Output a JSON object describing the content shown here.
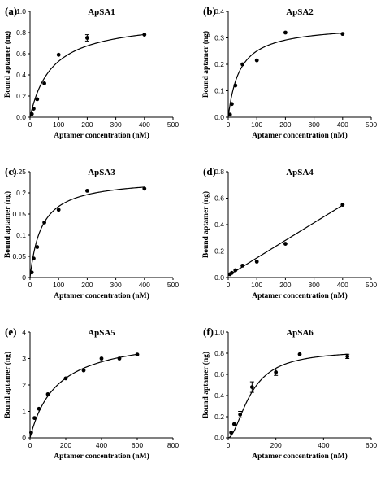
{
  "chart_data": [
    {
      "panel_label": "(a)",
      "title": "ApSA1",
      "type": "scatter",
      "xlabel": "Aptamer concentration (nM)",
      "ylabel": "Bound aptamer (ng)",
      "xlim": [
        0,
        500
      ],
      "ylim": [
        0,
        1.0
      ],
      "xticks": [
        0,
        100,
        200,
        300,
        400,
        500
      ],
      "yticks": [
        0.0,
        0.2,
        0.4,
        0.6,
        0.8,
        1.0
      ],
      "xtick_labels": [
        "0",
        "100",
        "200",
        "300",
        "400",
        "500"
      ],
      "ytick_labels": [
        "0.0",
        "0.2",
        "0.4",
        "0.6",
        "0.8",
        "1.0"
      ],
      "points": [
        {
          "x": 6.25,
          "y": 0.03
        },
        {
          "x": 12.5,
          "y": 0.08
        },
        {
          "x": 25,
          "y": 0.17
        },
        {
          "x": 50,
          "y": 0.32
        },
        {
          "x": 100,
          "y": 0.59
        },
        {
          "x": 200,
          "y": 0.75,
          "err": 0.03
        },
        {
          "x": 400,
          "y": 0.78
        }
      ],
      "fit": {
        "model": "hyperbolic",
        "bmax": 0.93,
        "kd": 76,
        "xmax": 400
      }
    },
    {
      "panel_label": "(b)",
      "title": "ApSA2",
      "type": "scatter",
      "xlabel": "Aptamer concentration (nM)",
      "ylabel": "Bound aptamer (ng)",
      "xlim": [
        0,
        500
      ],
      "ylim": [
        0,
        0.4
      ],
      "xticks": [
        0,
        100,
        200,
        300,
        400,
        500
      ],
      "yticks": [
        0.0,
        0.1,
        0.2,
        0.3,
        0.4
      ],
      "xtick_labels": [
        "0",
        "100",
        "200",
        "300",
        "400",
        "500"
      ],
      "ytick_labels": [
        "0.0",
        "0.1",
        "0.2",
        "0.3",
        "0.4"
      ],
      "points": [
        {
          "x": 6.25,
          "y": 0.01
        },
        {
          "x": 12.5,
          "y": 0.05
        },
        {
          "x": 25,
          "y": 0.12
        },
        {
          "x": 50,
          "y": 0.2
        },
        {
          "x": 100,
          "y": 0.215
        },
        {
          "x": 200,
          "y": 0.32
        },
        {
          "x": 400,
          "y": 0.315
        }
      ],
      "fit": {
        "model": "hyperbolic",
        "bmax": 0.35,
        "kd": 40,
        "xmax": 400
      }
    },
    {
      "panel_label": "(c)",
      "title": "ApSA3",
      "type": "scatter",
      "xlabel": "Aptamer concentration (nM)",
      "ylabel": "Bound aptamer (ng)",
      "xlim": [
        0,
        500
      ],
      "ylim": [
        0,
        0.25
      ],
      "xticks": [
        0,
        100,
        200,
        300,
        400,
        500
      ],
      "yticks": [
        0.0,
        0.05,
        0.1,
        0.15,
        0.2,
        0.25
      ],
      "xtick_labels": [
        "0",
        "100",
        "200",
        "300",
        "400",
        "500"
      ],
      "ytick_labels": [
        "0",
        "0.05",
        "0.1",
        "0.15",
        "0.2",
        "0.25"
      ],
      "points": [
        {
          "x": 6.25,
          "y": 0.012
        },
        {
          "x": 12.5,
          "y": 0.045
        },
        {
          "x": 25,
          "y": 0.072
        },
        {
          "x": 50,
          "y": 0.13
        },
        {
          "x": 100,
          "y": 0.16
        },
        {
          "x": 200,
          "y": 0.205
        },
        {
          "x": 400,
          "y": 0.21
        }
      ],
      "fit": {
        "model": "hyperbolic",
        "bmax": 0.235,
        "kd": 40,
        "xmax": 400
      }
    },
    {
      "panel_label": "(d)",
      "title": "ApSA4",
      "type": "scatter",
      "xlabel": "Aptamer concentration (nM)",
      "ylabel": "Bound aptamer (ng)",
      "xlim": [
        0,
        500
      ],
      "ylim": [
        0,
        0.8
      ],
      "xticks": [
        0,
        100,
        200,
        300,
        400,
        500
      ],
      "yticks": [
        0.0,
        0.2,
        0.4,
        0.6,
        0.8
      ],
      "xtick_labels": [
        "0",
        "100",
        "200",
        "300",
        "400",
        "500"
      ],
      "ytick_labels": [
        "0.0",
        "0.2",
        "0.4",
        "0.6",
        "0.8"
      ],
      "points": [
        {
          "x": 6.25,
          "y": 0.025
        },
        {
          "x": 12.5,
          "y": 0.035
        },
        {
          "x": 25,
          "y": 0.055
        },
        {
          "x": 50,
          "y": 0.09
        },
        {
          "x": 100,
          "y": 0.12
        },
        {
          "x": 200,
          "y": 0.255
        },
        {
          "x": 400,
          "y": 0.55
        }
      ],
      "fit": {
        "model": "linear",
        "slope": 0.00133,
        "intercept": 0.015,
        "xmax": 400
      }
    },
    {
      "panel_label": "(e)",
      "title": "ApSA5",
      "type": "scatter",
      "xlabel": "Aptamer concentration (nM)",
      "ylabel": "Bound aptamer (ng)",
      "xlim": [
        0,
        800
      ],
      "ylim": [
        0,
        4
      ],
      "xticks": [
        0,
        200,
        400,
        600,
        800
      ],
      "yticks": [
        0,
        1,
        2,
        3,
        4
      ],
      "xtick_labels": [
        "0",
        "200",
        "400",
        "600",
        "800"
      ],
      "ytick_labels": [
        "0",
        "1",
        "2",
        "3",
        "4"
      ],
      "points": [
        {
          "x": 6.25,
          "y": 0.2
        },
        {
          "x": 25,
          "y": 0.75
        },
        {
          "x": 50,
          "y": 1.1
        },
        {
          "x": 100,
          "y": 1.65
        },
        {
          "x": 200,
          "y": 2.25
        },
        {
          "x": 300,
          "y": 2.55
        },
        {
          "x": 400,
          "y": 3.0
        },
        {
          "x": 500,
          "y": 3.0
        },
        {
          "x": 600,
          "y": 3.15
        }
      ],
      "fit": {
        "model": "hyperbolic",
        "bmax": 3.95,
        "kd": 150,
        "xmax": 600
      }
    },
    {
      "panel_label": "(f)",
      "title": "ApSA6",
      "type": "scatter",
      "xlabel": "Aptamer concentration (nM)",
      "ylabel": "Bound aptamer (ng)",
      "xlim": [
        0,
        600
      ],
      "ylim": [
        0,
        1.0
      ],
      "xticks": [
        0,
        200,
        400,
        600
      ],
      "yticks": [
        0.0,
        0.2,
        0.4,
        0.6,
        0.8,
        1.0
      ],
      "xtick_labels": [
        "0",
        "200",
        "400",
        "600"
      ],
      "ytick_labels": [
        "0.0",
        "0.2",
        "0.4",
        "0.6",
        "0.8",
        "1.0"
      ],
      "points": [
        {
          "x": 12.5,
          "y": 0.05
        },
        {
          "x": 25,
          "y": 0.13
        },
        {
          "x": 50,
          "y": 0.22,
          "err": 0.03
        },
        {
          "x": 100,
          "y": 0.48,
          "err": 0.05
        },
        {
          "x": 200,
          "y": 0.62,
          "err": 0.03
        },
        {
          "x": 300,
          "y": 0.79
        },
        {
          "x": 500,
          "y": 0.77,
          "err": 0.02
        }
      ],
      "fit": {
        "model": "hill",
        "bmax": 0.83,
        "kd": 95,
        "n": 1.8,
        "xmax": 500
      }
    }
  ]
}
